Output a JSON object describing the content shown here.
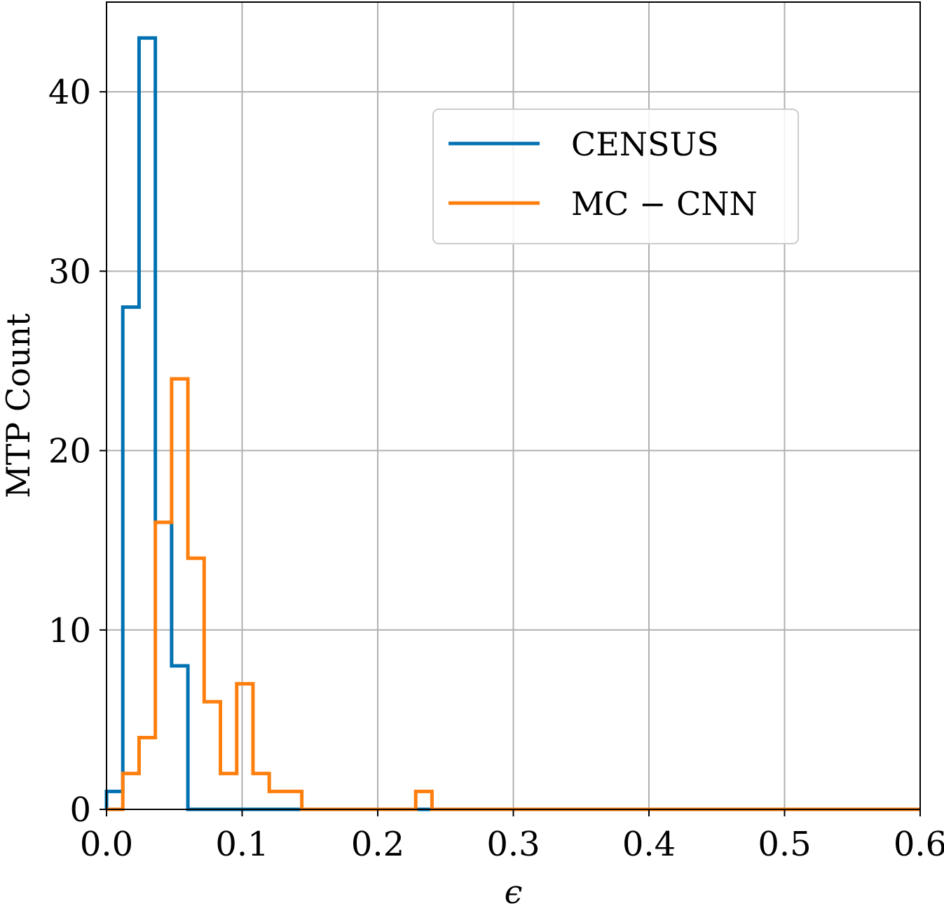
{
  "chart_data": {
    "type": "histogram",
    "xlabel": "ϵ",
    "ylabel": "MTP Count",
    "xlim": [
      0.0,
      0.6
    ],
    "ylim": [
      0,
      45
    ],
    "xticks": [
      0.0,
      0.1,
      0.2,
      0.3,
      0.4,
      0.5,
      0.6
    ],
    "xtick_labels": [
      "0.0",
      "0.1",
      "0.2",
      "0.3",
      "0.4",
      "0.5",
      "0.6"
    ],
    "yticks": [
      0,
      10,
      20,
      30,
      40
    ],
    "ytick_labels": [
      "0",
      "10",
      "20",
      "30",
      "40"
    ],
    "grid": true,
    "legend_position": "upper right",
    "bin_edges": [
      0.0,
      0.012,
      0.024,
      0.036,
      0.048,
      0.06,
      0.072,
      0.084,
      0.096,
      0.108,
      0.12,
      0.132,
      0.144,
      0.156,
      0.168,
      0.18,
      0.192,
      0.204,
      0.216,
      0.228,
      0.24,
      0.252,
      0.264,
      0.276,
      0.288,
      0.3,
      0.312,
      0.324,
      0.336,
      0.348,
      0.36,
      0.372,
      0.384,
      0.396,
      0.408,
      0.42,
      0.432,
      0.444,
      0.456,
      0.468,
      0.48,
      0.492,
      0.504,
      0.516,
      0.528,
      0.54,
      0.552,
      0.564,
      0.576,
      0.588,
      0.6
    ],
    "series": [
      {
        "name": "CENSUS",
        "color": "#0072b2",
        "counts": [
          1,
          28,
          43,
          16,
          8,
          0,
          0,
          0,
          0,
          0,
          0,
          0,
          0,
          0,
          0,
          0,
          0,
          0,
          0,
          0,
          0,
          0,
          0,
          0,
          0,
          0,
          0,
          0,
          0,
          0,
          0,
          0,
          0,
          0,
          0,
          0,
          0,
          0,
          0,
          0,
          0,
          0,
          0,
          0,
          0,
          0,
          0,
          0,
          0,
          0
        ]
      },
      {
        "name": "MC − CNN",
        "color": "#ff7f0e",
        "counts": [
          0,
          2,
          4,
          16,
          24,
          14,
          6,
          2,
          7,
          2,
          1,
          1,
          0,
          0,
          0,
          0,
          0,
          0,
          0,
          1,
          0,
          0,
          0,
          0,
          0,
          0,
          0,
          0,
          0,
          0,
          0,
          0,
          0,
          0,
          0,
          0,
          0,
          0,
          0,
          0,
          0,
          0,
          0,
          0,
          0,
          0,
          0,
          0,
          0,
          0
        ]
      }
    ]
  }
}
